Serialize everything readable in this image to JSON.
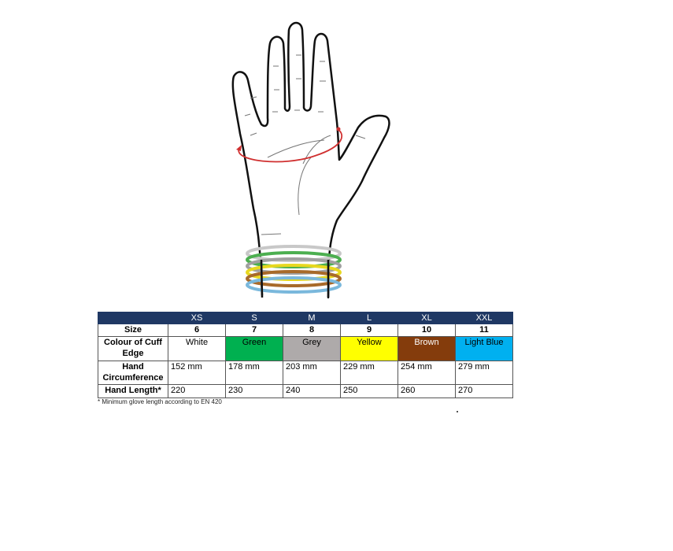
{
  "table": {
    "sizes": [
      "XS",
      "S",
      "M",
      "L",
      "XL",
      "XXL"
    ],
    "rows": {
      "size": {
        "label": "Size",
        "values": [
          "6",
          "7",
          "8",
          "9",
          "10",
          "11"
        ]
      },
      "colour": {
        "label": "Colour of Cuff Edge",
        "values": [
          "White",
          "Green",
          "Grey",
          "Yellow",
          "Brown",
          "Light Blue"
        ],
        "colors": [
          "#ffffff",
          "#00b050",
          "#aeaaaa",
          "#ffff00",
          "#843c0c",
          "#00b0f0"
        ]
      },
      "circumference": {
        "label": "Hand Circumference",
        "values": [
          "152 mm",
          "178 mm",
          "203 mm",
          "229 mm",
          "254 mm",
          "279 mm"
        ]
      },
      "length": {
        "label": "Hand Length*",
        "values": [
          "220",
          "230",
          "240",
          "250",
          "260",
          "270"
        ]
      }
    }
  },
  "footnote": "* Minimum glove length according to EN 420",
  "colors": {
    "header": "#1f3864",
    "measure_arrow": "#d03030"
  },
  "illustration": {
    "icon": "hand-with-cuff-rings-icon",
    "ring_colors": [
      "#c8c8c8",
      "#4caf50",
      "#a0a0a0",
      "#e8d820",
      "#a86a2a",
      "#7ab8dc"
    ]
  }
}
